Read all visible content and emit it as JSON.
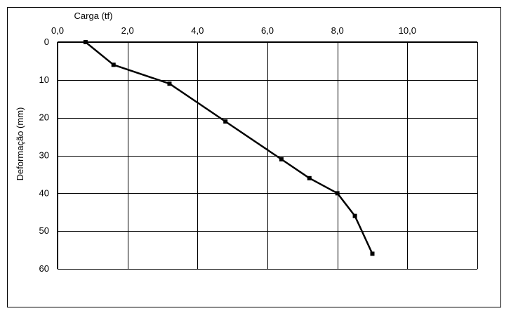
{
  "chart_data": {
    "type": "line",
    "xlabel": "Carga (tf)",
    "ylabel": "Deformação (mm)",
    "x_ticks": [
      "0,0",
      "2,0",
      "4,0",
      "6,0",
      "8,0",
      "10,0"
    ],
    "y_ticks": [
      "0",
      "10",
      "20",
      "30",
      "40",
      "50",
      "60"
    ],
    "xlim": [
      0,
      12
    ],
    "ylim": [
      0,
      60
    ],
    "y_inverted": true,
    "x_axis_position": "top",
    "grid": true,
    "series": [
      {
        "x": [
          0.8,
          1.6,
          3.2,
          4.8,
          6.4,
          7.2,
          8.0,
          8.5,
          9.0
        ],
        "y": [
          0,
          6,
          11,
          21,
          31,
          36,
          40,
          46,
          56
        ]
      }
    ]
  }
}
